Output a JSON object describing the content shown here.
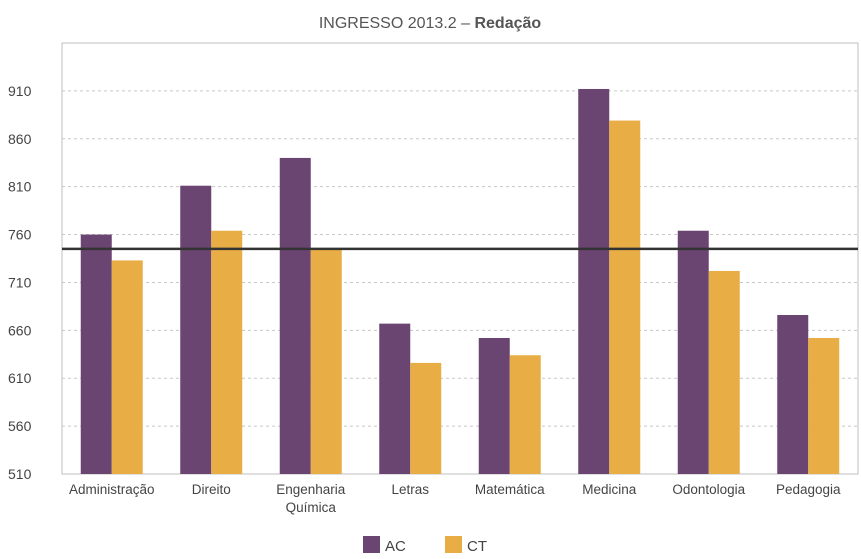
{
  "chart_data": {
    "type": "bar",
    "title": "INGRESSO 2013.2 – ",
    "title_emphasis": "Redação",
    "categories": [
      "Administração",
      "Direito",
      "Engenharia Química",
      "Letras",
      "Matemática",
      "Medicina",
      "Odontologia",
      "Pedagogia"
    ],
    "category_lines": [
      [
        "Administração"
      ],
      [
        "Direito"
      ],
      [
        "Engenharia",
        "Química"
      ],
      [
        "Letras"
      ],
      [
        "Matemática"
      ],
      [
        "Medicina"
      ],
      [
        "Odontologia"
      ],
      [
        "Pedagogia"
      ]
    ],
    "series": [
      {
        "name": "AC",
        "color": "#6b4571",
        "values": [
          760,
          811,
          840,
          667,
          652,
          912,
          764,
          676
        ]
      },
      {
        "name": "CT",
        "color": "#e8ae45",
        "values": [
          733,
          764,
          745,
          626,
          634,
          879,
          722,
          652
        ]
      }
    ],
    "reference_line": {
      "value": 745,
      "color": "#333333"
    },
    "ylim": [
      510,
      960
    ],
    "yticks": [
      510,
      560,
      610,
      660,
      710,
      760,
      810,
      860,
      910
    ],
    "grid": true,
    "legend": "bottom-center",
    "xlabel": "",
    "ylabel": ""
  }
}
